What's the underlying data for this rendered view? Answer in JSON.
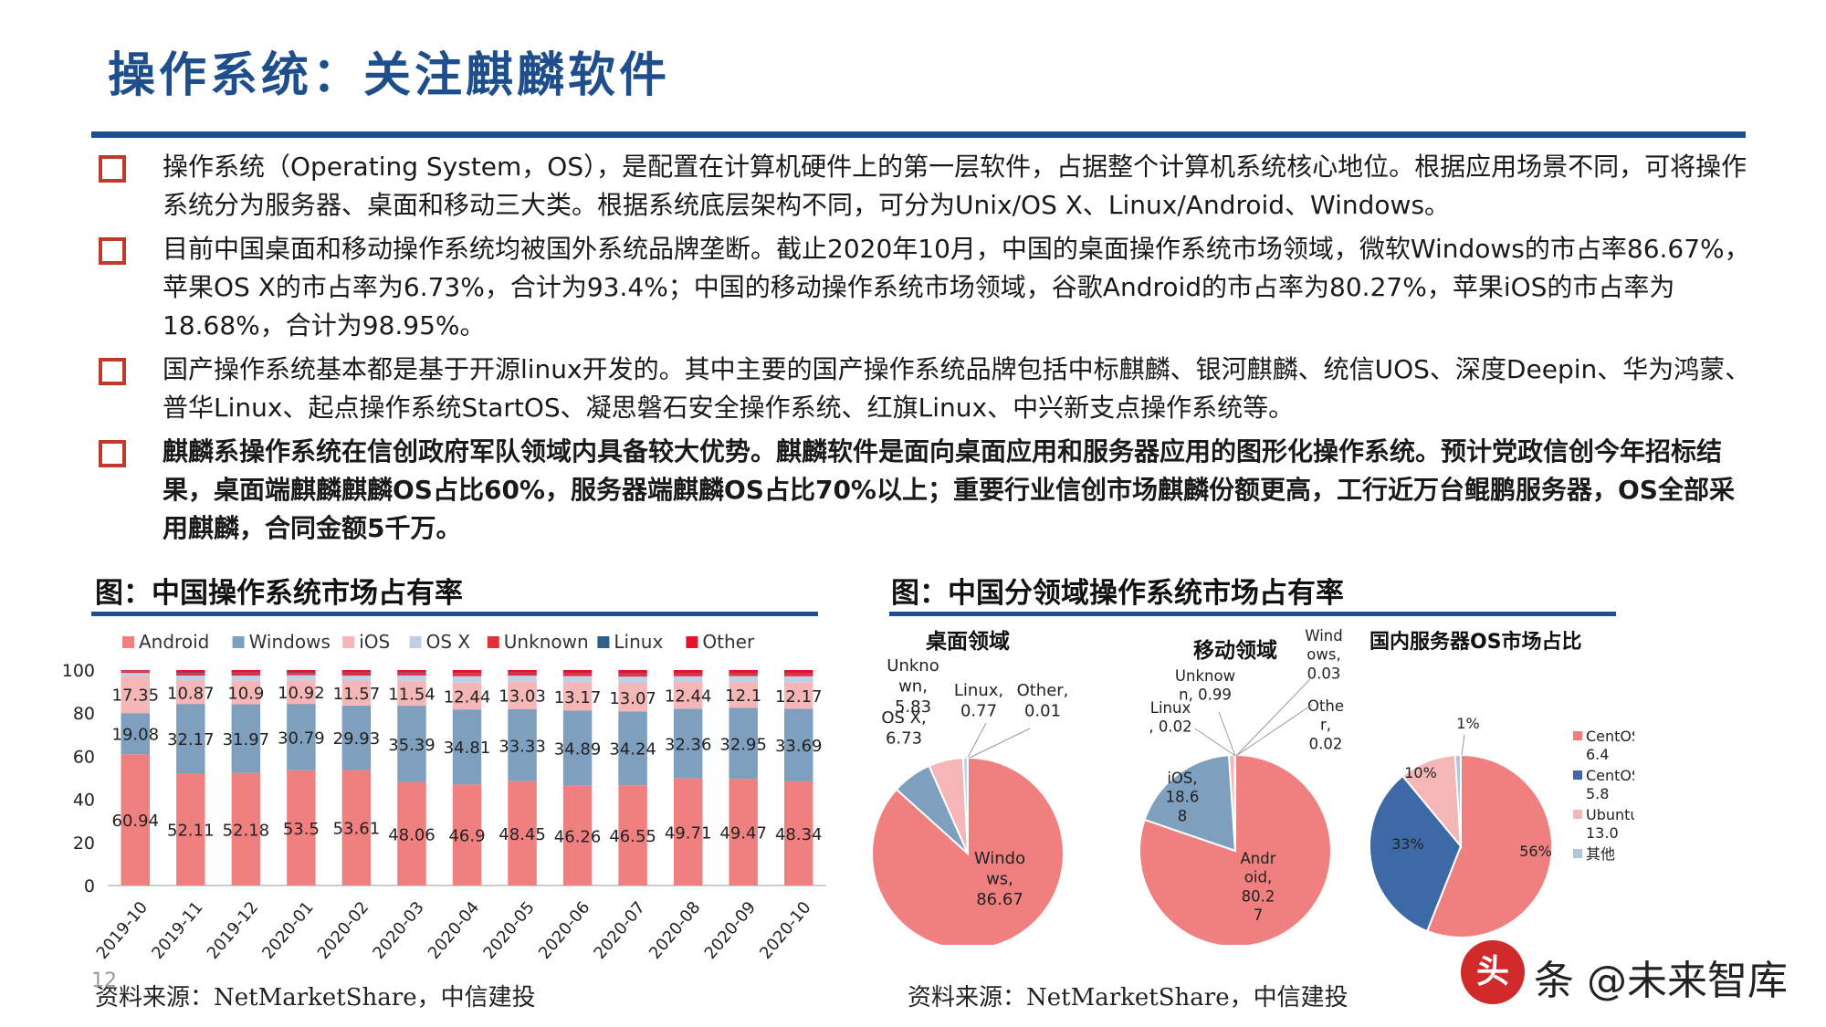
{
  "header": {
    "title": "操作系统：关注麒麟软件"
  },
  "bullets": [
    {
      "text": "操作系统（Operating System，OS），是配置在计算机硬件上的第一层软件，占据整个计算机系统核心地位。根据应用场景不同，可将操作系统分为服务器、桌面和移动三大类。根据系统底层架构不同，可分为Unix/OS X、Linux/Android、Windows。",
      "bold": false
    },
    {
      "text": "目前中国桌面和移动操作系统均被国外系统品牌垄断。截止2020年10月，中国的桌面操作系统市场领域，微软Windows的市占率86.67%，苹果OS X的市占率为6.73%，合计为93.4%；中国的移动操作系统市场领域，谷歌Android的市占率为80.27%，苹果iOS的市占率为18.68%，合计为98.95%。",
      "bold": false
    },
    {
      "text": "国产操作系统基本都是基于开源linux开发的。其中主要的国产操作系统品牌包括中标麒麟、银河麒麟、统信UOS、深度Deepin、华为鸿蒙、普华Linux、起点操作系统StartOS、凝思磐石安全操作系统、红旗Linux、中兴新支点操作系统等。",
      "bold": false
    },
    {
      "text": "麒麟系操作系统在信创政府军队领域内具备较大优势。麒麟软件是面向桌面应用和服务器应用的图形化操作系统。预计党政信创今年招标结果，桌面端麒麟麒麟OS占比60%，服务器端麒麟OS占比70%以上；重要行业信创市场麒麟份额更高，工行近万台鲲鹏服务器，OS全部采用麒麟，合同金额5千万。",
      "bold": true
    }
  ],
  "figure_left": {
    "title": "图：中国操作系统市场占有率",
    "source": "资料来源：NetMarketShare，中信建投"
  },
  "figure_right": {
    "title": "图：中国分领域操作系统市场占有率",
    "source": "资料来源：NetMarketShare，中信建投"
  },
  "page_number": "12",
  "watermark": {
    "seal": "头",
    "text": "条 @未来智库"
  },
  "chart_data": [
    {
      "type": "bar",
      "stacked": true,
      "categories": [
        "2019-10",
        "2019-11",
        "2019-12",
        "2020-01",
        "2020-02",
        "2020-03",
        "2020-04",
        "2020-05",
        "2020-06",
        "2020-07",
        "2020-08",
        "2020-09",
        "2020-10"
      ],
      "ylim": [
        0,
        100
      ],
      "yticks": [
        "0",
        "20",
        "40",
        "60",
        "80",
        "100"
      ],
      "legend_position": "top",
      "series": [
        {
          "name": "Android",
          "color": "#f08080",
          "values": [
            60.94,
            52.11,
            52.18,
            53.5,
            53.61,
            48.06,
            46.9,
            48.45,
            46.26,
            46.55,
            49.71,
            49.47,
            48.34
          ]
        },
        {
          "name": "Windows",
          "color": "#7f9fbf",
          "values": [
            19.08,
            32.17,
            31.97,
            30.79,
            29.93,
            35.39,
            34.81,
            33.33,
            34.89,
            34.24,
            32.36,
            32.95,
            33.69
          ]
        },
        {
          "name": "iOS",
          "color": "#f4b6b6",
          "values": [
            17.35,
            10.87,
            10.9,
            10.92,
            11.57,
            11.54,
            12.44,
            13.03,
            13.17,
            13.07,
            12.44,
            12.1,
            12.17
          ]
        },
        {
          "name": "OS X",
          "color": "#bdd0e6",
          "values": [
            1.3,
            2.3,
            2.4,
            2.4,
            2.3,
            2.5,
            3.0,
            2.6,
            2.9,
            3.1,
            2.6,
            2.7,
            2.9
          ]
        },
        {
          "name": "Unknown",
          "color": "#e0303a",
          "values": [
            0.8,
            1.2,
            1.1,
            1.0,
            1.1,
            1.1,
            1.2,
            1.1,
            1.2,
            1.3,
            1.2,
            1.2,
            1.2
          ]
        },
        {
          "name": "Linux",
          "color": "#2e5e8a",
          "values": [
            0.2,
            0.3,
            0.3,
            0.3,
            0.3,
            0.3,
            0.3,
            0.3,
            0.3,
            0.4,
            0.3,
            0.3,
            0.3
          ]
        },
        {
          "name": "Other",
          "color": "#e8102a",
          "values": [
            0.33,
            1.05,
            1.15,
            1.09,
            1.19,
            1.11,
            1.35,
            1.19,
            1.28,
            1.34,
            1.39,
            1.28,
            1.4
          ]
        }
      ],
      "labeled_series": [
        "Android",
        "Windows",
        "iOS"
      ]
    },
    {
      "type": "pie",
      "title": "桌面领域",
      "slices": [
        {
          "name": "Windows",
          "value": 86.67,
          "color": "#f08080",
          "label_lines": [
            "Windo",
            "ws,",
            "86.67"
          ]
        },
        {
          "name": "OS X",
          "value": 6.73,
          "color": "#7f9fbf",
          "label_lines": [
            "OS X,",
            "6.73"
          ]
        },
        {
          "name": "Unknown",
          "value": 5.83,
          "color": "#f4b6b6",
          "label_lines": [
            "Unkno",
            "wn,",
            "5.83"
          ]
        },
        {
          "name": "Linux",
          "value": 0.77,
          "color": "#bdd0e6",
          "label_lines": [
            "Linux,",
            "0.77"
          ]
        },
        {
          "name": "Other",
          "value": 0.01,
          "color": "#e0303a",
          "label_lines": [
            "Other,",
            "0.01"
          ]
        }
      ]
    },
    {
      "type": "pie",
      "title": "移动领域",
      "slices": [
        {
          "name": "Android",
          "value": 80.27,
          "color": "#f08080",
          "label_lines": [
            "Andr",
            "oid,",
            "80.2",
            "7"
          ]
        },
        {
          "name": "iOS",
          "value": 18.68,
          "color": "#7f9fbf",
          "label_lines": [
            "iOS,",
            "18.6",
            "8"
          ]
        },
        {
          "name": "Unknown",
          "value": 0.99,
          "color": "#f4b6b6",
          "label_lines": [
            "Unknow",
            "n, 0.99"
          ]
        },
        {
          "name": "Linux",
          "value": 0.02,
          "color": "#bdd0e6",
          "label_lines": [
            "Linux",
            ", 0.02"
          ]
        },
        {
          "name": "Windows",
          "value": 0.03,
          "color": "#e0303a",
          "label_lines": [
            "Wind",
            "ows,",
            "0.03"
          ]
        },
        {
          "name": "Other",
          "value": 0.02,
          "color": "#2e5e8a",
          "label_lines": [
            "Othe",
            "r,",
            "0.02"
          ]
        }
      ]
    },
    {
      "type": "pie",
      "title": "国内服务器OS市场占比",
      "slices": [
        {
          "name": "CentOS 6.4",
          "value": 56,
          "color": "#f08080",
          "label": "56%"
        },
        {
          "name": "CentOS 5.8",
          "value": 33,
          "color": "#3d6aa6",
          "label": "33%"
        },
        {
          "name": "Ubuntu 13.0",
          "value": 10,
          "color": "#f4b6b6",
          "label": "10%"
        },
        {
          "name": "其他",
          "value": 1,
          "color": "#b0c4de",
          "label": "1%"
        }
      ],
      "legend": [
        {
          "lines": [
            "CentOS",
            "6.4"
          ],
          "color": "#f08080"
        },
        {
          "lines": [
            "CentOS",
            "5.8"
          ],
          "color": "#3d6aa6"
        },
        {
          "lines": [
            "Ubuntu",
            "13.0"
          ],
          "color": "#f4b6b6"
        },
        {
          "lines": [
            "其他"
          ],
          "color": "#b0c4de"
        }
      ]
    }
  ]
}
